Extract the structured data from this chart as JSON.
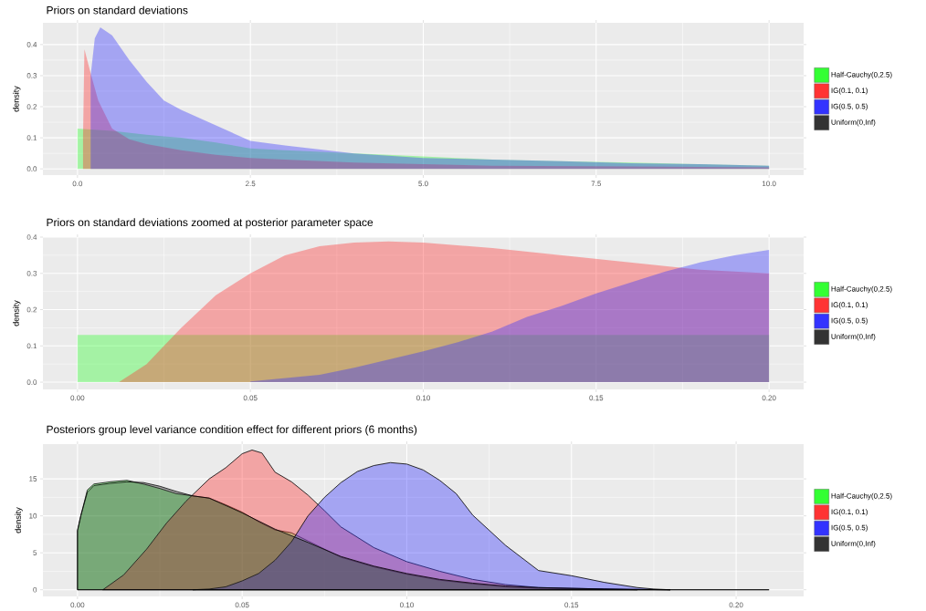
{
  "chart_data": [
    {
      "type": "area",
      "title": "Priors on standard deviations",
      "ylabel": "density",
      "grid": true,
      "legend": "right",
      "xlim": [
        -0.5,
        10.5
      ],
      "ylim": [
        -0.02,
        0.47
      ],
      "xticks": [
        {
          "value": 0,
          "label": "0.0"
        },
        2.5,
        {
          "value": 5,
          "label": "5.0"
        },
        7.5,
        {
          "value": 10,
          "label": "10.0"
        }
      ],
      "yticks": [
        {
          "value": 0,
          "label": "0.0"
        },
        0.1,
        0.2,
        0.3,
        0.4
      ],
      "series": [
        {
          "name": "Half-Cauchy(0,2.5)",
          "color": "#33ff33",
          "x": [
            0,
            0.5,
            1,
            1.25,
            1.5,
            2,
            2.5,
            3,
            4,
            5,
            6,
            7,
            8,
            9,
            10
          ],
          "values": [
            0.13,
            0.122,
            0.11,
            0.105,
            0.1,
            0.085,
            0.066,
            0.06,
            0.05,
            0.04,
            0.03,
            0.025,
            0.02,
            0.015,
            0.01
          ]
        },
        {
          "name": "IG(0.1, 0.1)",
          "color": "#ff3333",
          "x": [
            0.08,
            0.1,
            0.2,
            0.3,
            0.5,
            0.75,
            1,
            1.5,
            2,
            2.5,
            3,
            4,
            5,
            6,
            8,
            10
          ],
          "values": [
            0.1,
            0.385,
            0.3,
            0.22,
            0.13,
            0.095,
            0.08,
            0.06,
            0.045,
            0.035,
            0.03,
            0.02,
            0.015,
            0.01,
            0.008,
            0.005
          ]
        },
        {
          "name": "IG(0.5, 0.5)",
          "color": "#3333ff",
          "x": [
            0.19,
            0.25,
            0.33,
            0.5,
            0.75,
            1,
            1.25,
            1.5,
            2,
            2.5,
            3,
            4,
            5,
            6,
            7,
            8,
            9,
            10
          ],
          "values": [
            0.3,
            0.42,
            0.455,
            0.43,
            0.35,
            0.28,
            0.22,
            0.19,
            0.14,
            0.09,
            0.075,
            0.05,
            0.035,
            0.03,
            0.025,
            0.018,
            0.015,
            0.01
          ]
        },
        {
          "name": "Uniform(0,Inf)",
          "color": "#333333"
        }
      ]
    },
    {
      "type": "area",
      "title": "Priors on standard deviations zoomed at posterior parameter space",
      "ylabel": "density",
      "grid": true,
      "legend": "right",
      "xlim": [
        -0.01,
        0.21
      ],
      "ylim": [
        -0.02,
        0.4
      ],
      "xticks": [
        {
          "value": 0,
          "label": "0.00"
        },
        0.05,
        {
          "value": 0.1,
          "label": "0.10"
        },
        0.15,
        {
          "value": 0.2,
          "label": "0.20"
        }
      ],
      "yticks": [
        {
          "value": 0,
          "label": "0.0"
        },
        0.1,
        0.2,
        0.3,
        0.4
      ],
      "series": [
        {
          "name": "Half-Cauchy(0,2.5)",
          "color": "#33ff33",
          "x": [
            0,
            0.2
          ],
          "values": [
            0.13,
            0.13
          ]
        },
        {
          "name": "IG(0.1, 0.1)",
          "color": "#ff3333",
          "x": [
            0.012,
            0.02,
            0.025,
            0.03,
            0.04,
            0.05,
            0.06,
            0.07,
            0.08,
            0.09,
            0.1,
            0.12,
            0.14,
            0.16,
            0.18,
            0.2
          ],
          "values": [
            0.0,
            0.05,
            0.1,
            0.15,
            0.24,
            0.3,
            0.35,
            0.375,
            0.385,
            0.388,
            0.385,
            0.37,
            0.35,
            0.33,
            0.31,
            0.3
          ]
        },
        {
          "name": "IG(0.5, 0.5)",
          "color": "#3333ff",
          "x": [
            0.05,
            0.07,
            0.08,
            0.1,
            0.11,
            0.12,
            0.13,
            0.14,
            0.15,
            0.16,
            0.17,
            0.18,
            0.19,
            0.2
          ],
          "values": [
            0.002,
            0.02,
            0.04,
            0.085,
            0.11,
            0.14,
            0.18,
            0.21,
            0.245,
            0.275,
            0.305,
            0.33,
            0.35,
            0.365
          ]
        },
        {
          "name": "Uniform(0,Inf)",
          "color": "#333333"
        }
      ]
    },
    {
      "type": "area",
      "title": "Posteriors group level variance condition effect for different priors (6 months)",
      "ylabel": "density",
      "grid": true,
      "legend": "right",
      "line_style": "solid",
      "xlim": [
        -0.0105,
        0.2205
      ],
      "ylim": [
        -0.9,
        19.7
      ],
      "xticks": [
        {
          "value": 0,
          "label": "0.00"
        },
        0.05,
        {
          "value": 0.1,
          "label": "0.10"
        },
        0.15,
        {
          "value": 0.2,
          "label": "0.20"
        }
      ],
      "yticks": [
        0,
        5,
        10,
        15
      ],
      "series": [
        {
          "name": "Half-Cauchy(0,2.5)",
          "color": "#33ff33",
          "x": [
            0,
            0.001,
            0.003,
            0.005,
            0.01,
            0.015,
            0.02,
            0.025,
            0.03,
            0.035,
            0.04,
            0.045,
            0.05,
            0.055,
            0.06,
            0.065,
            0.07,
            0.08,
            0.09,
            0.1,
            0.11,
            0.12,
            0.13,
            0.14,
            0.16,
            0.18
          ],
          "values": [
            8,
            10,
            13.5,
            14.3,
            14.6,
            14.8,
            14.3,
            13.7,
            13.0,
            12.7,
            12.4,
            11.5,
            10.5,
            9.2,
            8.1,
            7.7,
            6.6,
            4.4,
            3.1,
            2.1,
            1.3,
            0.8,
            0.4,
            0.2,
            0.1,
            0
          ]
        },
        {
          "name": "IG(0.1, 0.1)",
          "color": "#ff3333",
          "x": [
            0.0077,
            0.014,
            0.021,
            0.027,
            0.033,
            0.04,
            0.045,
            0.05,
            0.053,
            0.056,
            0.06,
            0.065,
            0.07,
            0.075,
            0.08,
            0.09,
            0.1,
            0.11,
            0.12,
            0.13,
            0.14,
            0.16,
            0.17
          ],
          "values": [
            0,
            2,
            5.5,
            9,
            12,
            15,
            16.5,
            18.4,
            18.9,
            18.5,
            15.9,
            14.6,
            12.8,
            10.7,
            8.5,
            5.7,
            3.8,
            2.5,
            1.4,
            0.7,
            0.3,
            0.1,
            0
          ]
        },
        {
          "name": "IG(0.5, 0.5)",
          "color": "#3333ff",
          "x": [
            0.035,
            0.04,
            0.045,
            0.05,
            0.055,
            0.06,
            0.065,
            0.07,
            0.075,
            0.08,
            0.085,
            0.09,
            0.095,
            0.1,
            0.105,
            0.11,
            0.115,
            0.12,
            0.13,
            0.14,
            0.15,
            0.16,
            0.17,
            0.175,
            0.18
          ],
          "values": [
            0,
            0.1,
            0.4,
            1.2,
            2.2,
            4,
            6.5,
            10,
            12.5,
            14.5,
            16,
            16.8,
            17.2,
            17,
            16.2,
            14.8,
            13,
            10.1,
            6.0,
            2.6,
            1.9,
            1.0,
            0.3,
            0.1,
            0
          ]
        },
        {
          "name": "Uniform(0,Inf)",
          "color": "#333333",
          "x": [
            0,
            0.001,
            0.003,
            0.005,
            0.01,
            0.015,
            0.02,
            0.025,
            0.03,
            0.035,
            0.04,
            0.05,
            0.06,
            0.07,
            0.08,
            0.09,
            0.1,
            0.11,
            0.12,
            0.13,
            0.14,
            0.16,
            0.18,
            0.21
          ],
          "values": [
            8,
            10,
            13.2,
            14.1,
            14.4,
            14.6,
            14.5,
            14.0,
            13.3,
            12.7,
            12.4,
            10.4,
            8.2,
            6.4,
            4.5,
            3.2,
            2.2,
            1.4,
            0.9,
            0.5,
            0.3,
            0.1,
            0,
            0
          ]
        }
      ]
    }
  ]
}
